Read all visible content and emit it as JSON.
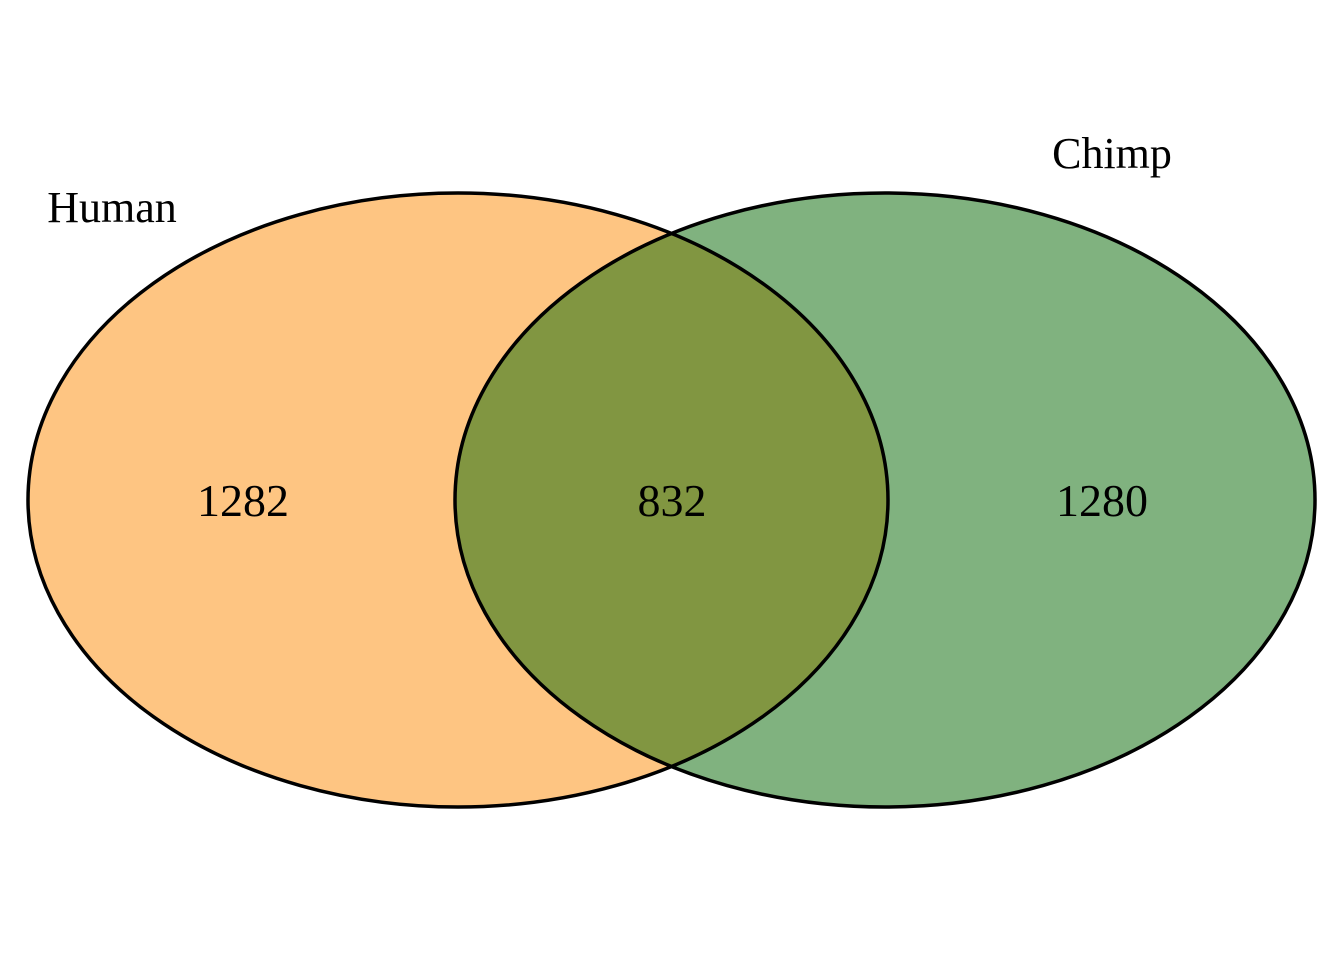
{
  "diagram": {
    "type": "venn",
    "sets": [
      {
        "label": "Human",
        "color": "#fec582"
      },
      {
        "label": "Chimp",
        "color": "#80b27f"
      }
    ],
    "overlap_color": "#819641",
    "outline_color": "#000000",
    "counts": {
      "human_only": "1282",
      "both": "832",
      "chimp_only": "1280"
    }
  }
}
